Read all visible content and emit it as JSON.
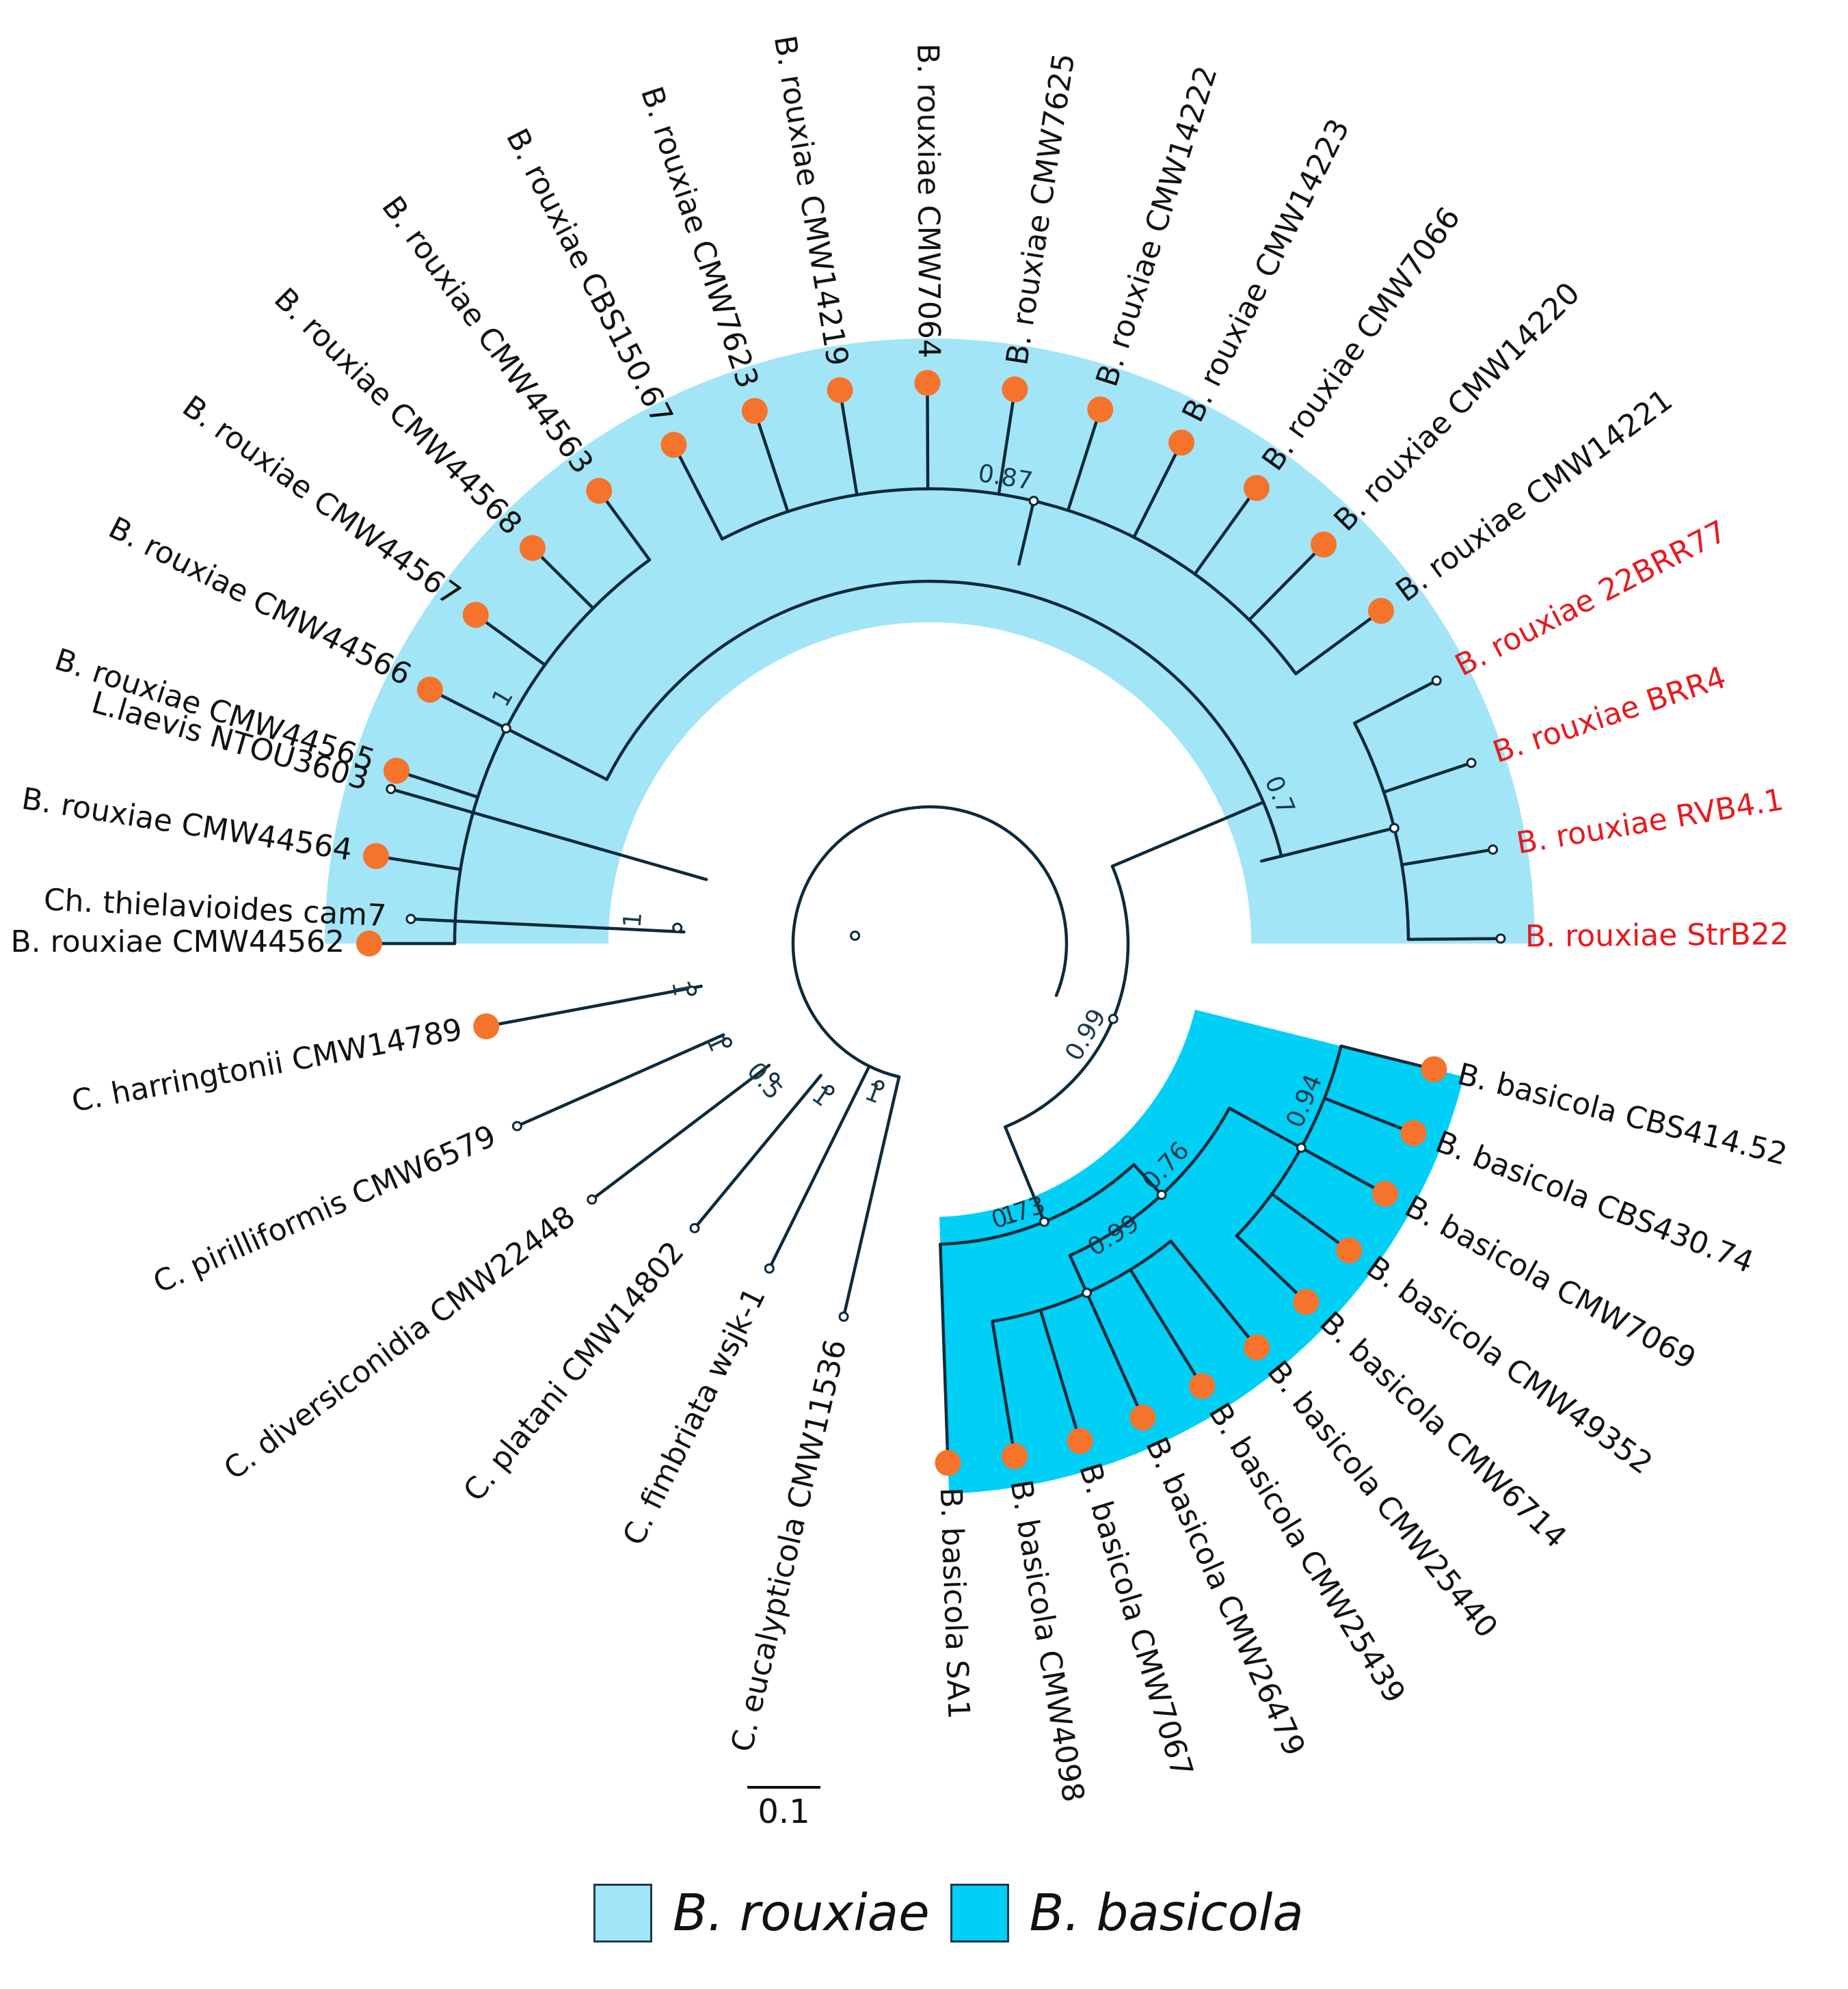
{
  "colors": {
    "rouxiae_clade": "#a2e5f7",
    "basicola_clade": "#00cff6",
    "branch": "#0d2a3a",
    "marker": "#f5732b",
    "highlight_label": "#e8191e",
    "label": "#111111"
  },
  "tree": {
    "rouxiae": [
      {
        "name": "B. rouxiae CMW44562",
        "marker": "dot",
        "highlight": false
      },
      {
        "name": "B. rouxiae CMW44564",
        "marker": "dot",
        "highlight": false
      },
      {
        "name": "B. rouxiae CMW44565",
        "marker": "dot",
        "highlight": false
      },
      {
        "name": "B. rouxiae CMW44566",
        "marker": "dot",
        "highlight": false
      },
      {
        "name": "B. rouxiae CMW44567",
        "marker": "dot",
        "highlight": false
      },
      {
        "name": "B. rouxiae CMW44568",
        "marker": "dot",
        "highlight": false
      },
      {
        "name": "B. rouxiae CMW44563",
        "marker": "dot",
        "highlight": false
      },
      {
        "name": "B. rouxiae CBS150.67",
        "marker": "dot",
        "highlight": false
      },
      {
        "name": "B. rouxiae CMW7623",
        "marker": "dot",
        "highlight": false
      },
      {
        "name": "B. rouxiae CMW14219",
        "marker": "dot",
        "highlight": false
      },
      {
        "name": "B. rouxiae CMW7064",
        "marker": "dot",
        "highlight": false
      },
      {
        "name": "B. rouxiae CMW7625",
        "marker": "dot",
        "highlight": false
      },
      {
        "name": "B. rouxiae CMW14222",
        "marker": "dot",
        "highlight": false
      },
      {
        "name": "B. rouxiae CMW14223",
        "marker": "dot",
        "highlight": false
      },
      {
        "name": "B. rouxiae CMW7066",
        "marker": "dot",
        "highlight": false
      },
      {
        "name": "B. rouxiae CMW14220",
        "marker": "dot",
        "highlight": false
      },
      {
        "name": "B. rouxiae CMW14221",
        "marker": "dot",
        "highlight": false
      },
      {
        "name": "B. rouxiae 22BRR77",
        "marker": "tip",
        "highlight": true
      },
      {
        "name": "B. rouxiae BRR4",
        "marker": "tip",
        "highlight": true
      },
      {
        "name": "B. rouxiae RVB4.1",
        "marker": "tip",
        "highlight": true
      },
      {
        "name": "B. rouxiae StrB22",
        "marker": "tip",
        "highlight": true
      }
    ],
    "basicola": [
      {
        "name": "B. basicola CBS414.52",
        "marker": "dot"
      },
      {
        "name": "B. basicola CBS430.74",
        "marker": "dot"
      },
      {
        "name": "B. basicola CMW7069",
        "marker": "dot"
      },
      {
        "name": "B. basicola CMW49352",
        "marker": "dot"
      },
      {
        "name": "B. basicola CMW6714",
        "marker": "dot"
      },
      {
        "name": "B. basicola CMW25440",
        "marker": "dot"
      },
      {
        "name": "B. basicola CMW25439",
        "marker": "dot"
      },
      {
        "name": "B. basicola CMW26479",
        "marker": "dot"
      },
      {
        "name": "B. basicola CMW7067",
        "marker": "dot"
      },
      {
        "name": "B. basicola CMW4098",
        "marker": "dot"
      },
      {
        "name": "B. basicola SA1",
        "marker": "dot"
      }
    ],
    "outgroup": [
      {
        "name": "C. eucalypticola CMW11536",
        "marker": "tip"
      },
      {
        "name": "C. fimbriata wsjk-1",
        "marker": "tip"
      },
      {
        "name": "C. platani CMW14802",
        "marker": "tip"
      },
      {
        "name": "C. diversiconidia CMW22448",
        "marker": "tip"
      },
      {
        "name": "C. pirilliformis CMW6579",
        "marker": "tip"
      },
      {
        "name": "C. harringtonii CMW14789",
        "marker": "dot"
      },
      {
        "name": "Ch. thielavioides cam7",
        "marker": "tip"
      },
      {
        "name": "L.laevis NTOU3603",
        "marker": "tip"
      }
    ],
    "support_values": {
      "rouxiae_inner": "1",
      "rouxiae_cmw7625_group": "0.87",
      "rouxiae_clade": "0.7",
      "thielaviopsis_root": "0.99",
      "basicola_clade": "1",
      "basicola_inner_a": "0.76",
      "basicola_inner_b": "0.94",
      "basicola_inner_c": "0.73",
      "basicola_inner_d": "0.99",
      "outgroup_a": "1",
      "outgroup_b": "1",
      "outgroup_c": "1",
      "outgroup_d": "0.5",
      "outgroup_e": "1",
      "outgroup_f": "1"
    }
  },
  "scale_bar": {
    "label": "0.1"
  },
  "legend": {
    "rouxiae": "B. rouxiae",
    "basicola": "B. basicola"
  }
}
